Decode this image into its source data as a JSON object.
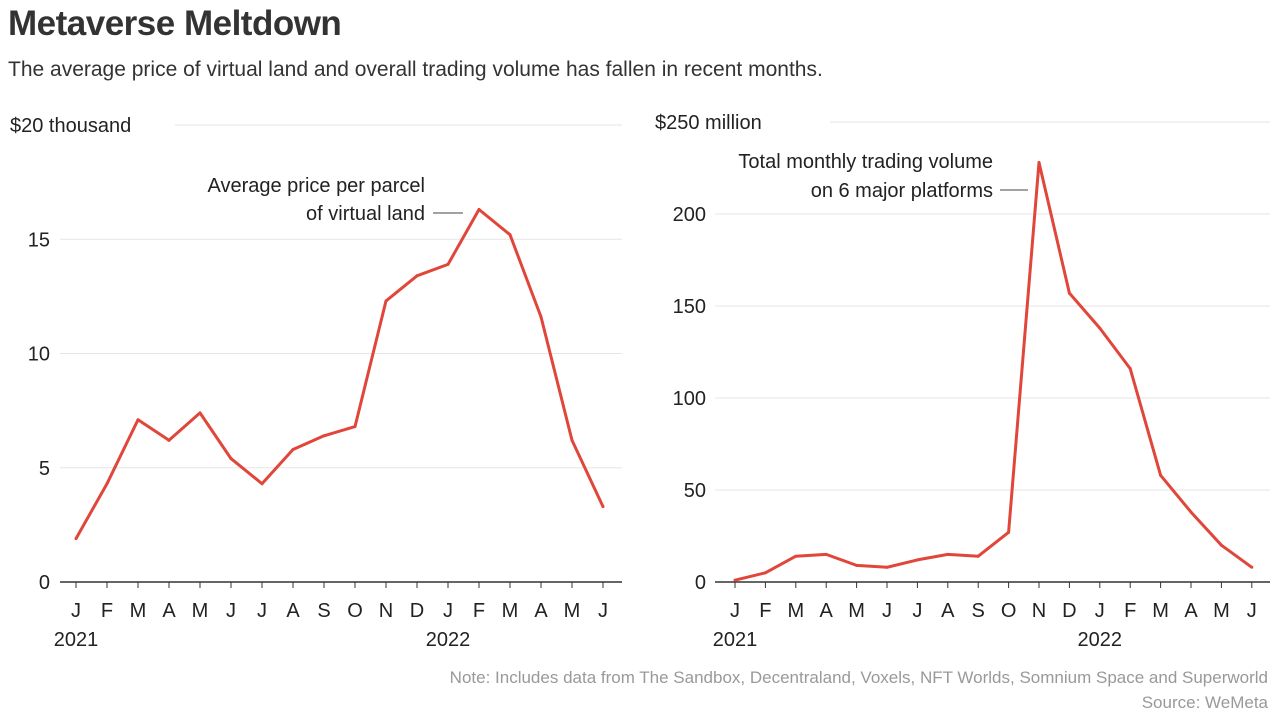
{
  "title": "Metaverse Meltdown",
  "subtitle": "The average price of virtual land and overall trading volume has fallen in recent months.",
  "note": "Note: Includes data from The Sandbox, Decentraland, Voxels, NFT Worlds, Somnium Space and Superworld",
  "source": "Source: WeMeta",
  "colors": {
    "line": "#e0463a",
    "grid": "#e6e6e6",
    "axis": "#333333",
    "footer_text": "#999999"
  },
  "chart_data": [
    {
      "type": "line",
      "unit_label": "$20 thousand",
      "annotation": [
        "Average price per parcel",
        "of virtual land"
      ],
      "ylim": [
        0,
        20
      ],
      "yticks": [
        0,
        5,
        10,
        15,
        20
      ],
      "ytick_labels": [
        "0",
        "5",
        "10",
        "15",
        "$20 thousand"
      ],
      "categories": [
        "J",
        "F",
        "M",
        "A",
        "M",
        "J",
        "J",
        "A",
        "S",
        "O",
        "N",
        "D",
        "J",
        "F",
        "M",
        "A",
        "M",
        "J"
      ],
      "year_labels": [
        {
          "index": 0,
          "label": "2021"
        },
        {
          "index": 12,
          "label": "2022"
        }
      ],
      "grid": true,
      "values": [
        1.9,
        4.3,
        7.1,
        6.2,
        7.4,
        5.4,
        4.3,
        5.8,
        6.4,
        6.8,
        12.3,
        13.4,
        13.9,
        16.3,
        15.2,
        11.6,
        6.2,
        3.3
      ]
    },
    {
      "type": "line",
      "unit_label": "$250 million",
      "annotation": [
        "Total monthly trading volume",
        "on 6 major platforms"
      ],
      "ylim": [
        0,
        250
      ],
      "yticks": [
        0,
        50,
        100,
        150,
        200,
        250
      ],
      "ytick_labels": [
        "0",
        "50",
        "100",
        "150",
        "200",
        "$250 million"
      ],
      "categories": [
        "J",
        "F",
        "M",
        "A",
        "M",
        "J",
        "J",
        "A",
        "S",
        "O",
        "N",
        "D",
        "J",
        "F",
        "M",
        "A",
        "M",
        "J"
      ],
      "year_labels": [
        {
          "index": 0,
          "label": "2021"
        },
        {
          "index": 12,
          "label": "2022"
        }
      ],
      "grid": true,
      "values": [
        1,
        5,
        14,
        15,
        9,
        8,
        12,
        15,
        14,
        27,
        228,
        157,
        138,
        116,
        58,
        38,
        20,
        8
      ]
    }
  ]
}
